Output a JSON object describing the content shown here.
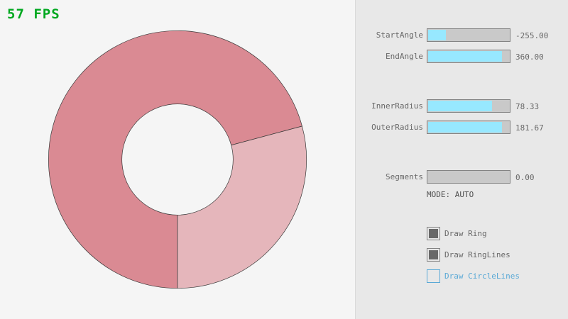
{
  "fps": "57 FPS",
  "ring": {
    "colors": {
      "main": "#da8a93",
      "light": "#e5b6bb",
      "outline": "#3a3a3a"
    },
    "center_label": ""
  },
  "sliders": [
    {
      "label": "StartAngle",
      "value": "-255.00",
      "fraction": 0.217
    },
    {
      "label": "EndAngle",
      "value": "360.00",
      "fraction": 0.9
    },
    {
      "label": "InnerRadius",
      "value": "78.33",
      "fraction": 0.783
    },
    {
      "label": "OuterRadius",
      "value": "181.67",
      "fraction": 0.908
    },
    {
      "label": "Segments",
      "value": "0.00",
      "fraction": 0
    }
  ],
  "mode": "MODE: AUTO",
  "checkboxes": [
    {
      "label": "Draw Ring",
      "checked": true
    },
    {
      "label": "Draw RingLines",
      "checked": true
    },
    {
      "label": "Draw CircleLines",
      "checked": false
    }
  ],
  "accent": "#5aa9d6"
}
